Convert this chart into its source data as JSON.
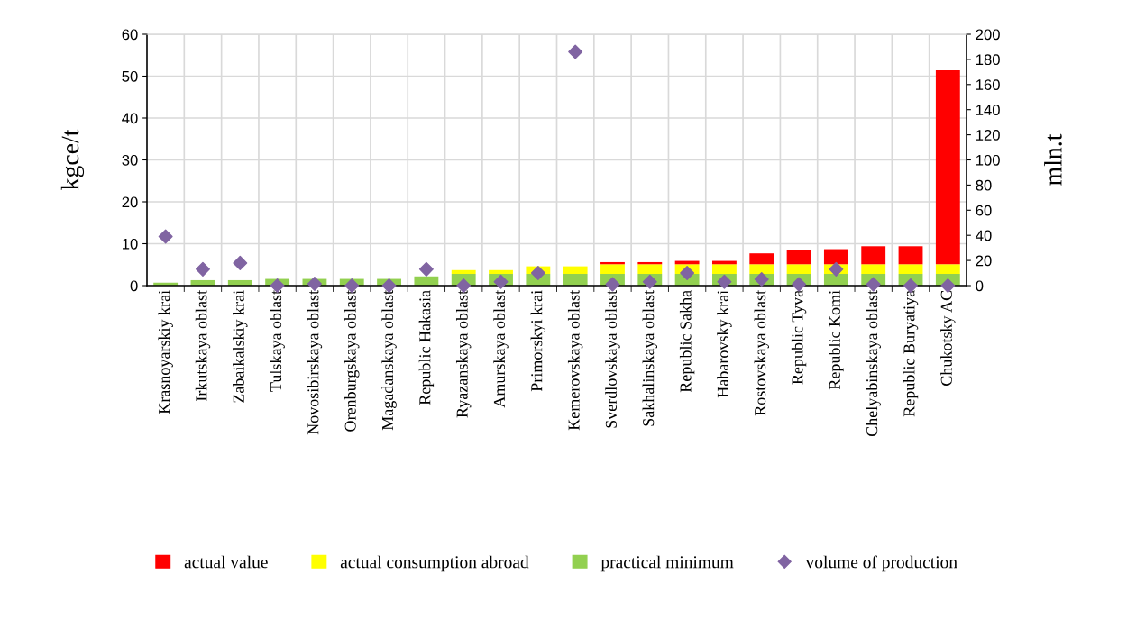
{
  "chart_data": {
    "type": "bar",
    "stacked": true,
    "ylabel": "kgce/t",
    "y2label": "mln.t",
    "categories": [
      "Krasnoyarskiy krai",
      "Irkutskaya oblast",
      "Zabaikalskiy krai",
      "Tulskaya oblast",
      "Novosibirskaya oblast",
      "Orenburgskaya oblast",
      "Magadanskaya oblast",
      "Republic Hakasia",
      "Ryazanskaya oblast",
      "Amurskaya oblast",
      "Primorskyi krai",
      "Kemerovskaya oblast",
      "Sverdlovskaya oblast",
      "Sakhalinskaya oblast",
      "Republic Sakha",
      "Habarovsky krai",
      "Rostovskaya oblast",
      "Republic Tyva",
      "Republic Komi",
      "Chelyabinskaya oblast",
      "Republic Buryatiya",
      "Chukotsky AC"
    ],
    "series": [
      {
        "name": "practical minimum",
        "color": "#92d050",
        "values": [
          0.7,
          1.3,
          1.3,
          1.6,
          1.6,
          1.6,
          1.6,
          2.2,
          2.8,
          2.8,
          2.8,
          2.8,
          2.8,
          2.8,
          2.8,
          2.8,
          2.8,
          2.8,
          2.8,
          2.8,
          2.8,
          2.8
        ]
      },
      {
        "name": "actual consumption abroad",
        "color": "#ffff00",
        "values": [
          0,
          0,
          0,
          0,
          0,
          0,
          0,
          0,
          0.9,
          0.9,
          1.8,
          1.8,
          2.3,
          2.3,
          2.3,
          2.3,
          2.3,
          2.3,
          2.3,
          2.3,
          2.3,
          2.3
        ]
      },
      {
        "name": "actual value",
        "color": "#ff0000",
        "values": [
          0,
          0,
          0,
          0,
          0,
          0,
          0,
          0,
          0,
          0,
          0,
          0,
          0.5,
          0.5,
          0.8,
          0.8,
          2.6,
          3.3,
          3.6,
          4.3,
          4.3,
          46.3
        ]
      },
      {
        "name": "volume of production",
        "type": "scatter",
        "axis": "y2",
        "color": "#8064a2",
        "marker": "diamond",
        "values": [
          39,
          13,
          18,
          0,
          1.5,
          0,
          0,
          13,
          0,
          3,
          10,
          186,
          1,
          3,
          10,
          3,
          5,
          1,
          13,
          1,
          0,
          0
        ]
      }
    ],
    "ylim": [
      0,
      60
    ],
    "yticks": [
      0,
      10,
      20,
      30,
      40,
      50,
      60
    ],
    "y2lim": [
      0,
      200
    ],
    "y2ticks": [
      0,
      20,
      40,
      60,
      80,
      100,
      120,
      140,
      160,
      180,
      200
    ],
    "grid": true,
    "legend": "bottom"
  }
}
